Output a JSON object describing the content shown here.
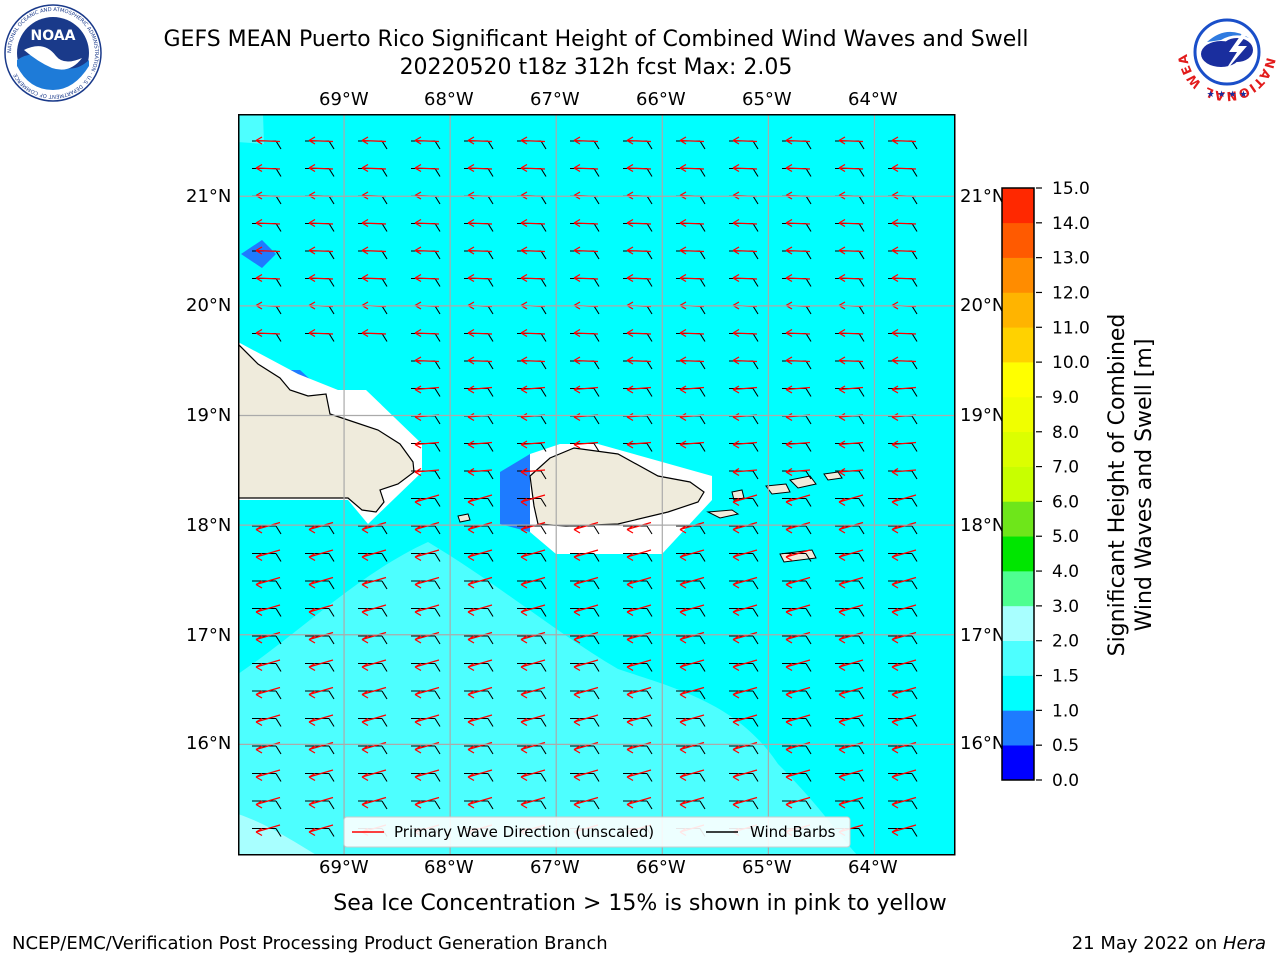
{
  "header": {
    "title_line1": "GEFS MEAN Puerto Rico Significant Height of Combined Wind Waves and Swell",
    "title_line2": "20220520 t18z 312h fcst   Max: 2.05",
    "noaa_logo_text": "NOAA",
    "noaa_logo_ring_text": "NATIONAL OCEANIC AND ATMOSPHERIC ADMINISTRATION · U.S. DEPARTMENT OF COMMERCE",
    "nws_logo_ring_text": "NATIONAL WEATHER SERVICE"
  },
  "map": {
    "lon_labels": [
      "69°W",
      "68°W",
      "67°W",
      "66°W",
      "65°W",
      "64°W"
    ],
    "lat_labels": [
      "21°N",
      "20°N",
      "19°N",
      "18°N",
      "17°N",
      "16°N"
    ],
    "extent": {
      "lon_min": -70.0,
      "lon_max": -63.25,
      "lat_min": 15.0,
      "lat_max": 21.75
    },
    "ocean_color": "#00ffff",
    "land_color": "#efebdc",
    "arrow_color": "#ff0000",
    "barb_color": "#000000",
    "legend": {
      "primary_wave": "Primary Wave Direction (unscaled)",
      "wind_barbs": "Wind Barbs"
    }
  },
  "colorbar": {
    "label": "Significant Height of Combined Wind Waves and Swell [m]",
    "label_line1": "Significant Height of Combined",
    "label_line2": "Wind Waves and Swell [m]",
    "ticks": [
      "15.0",
      "14.0",
      "13.0",
      "12.0",
      "11.0",
      "10.0",
      "9.0",
      "8.0",
      "7.0",
      "6.0",
      "5.0",
      "4.0",
      "3.0",
      "2.0",
      "1.5",
      "1.0",
      "0.5",
      "0.0"
    ],
    "bins_bottom_to_top": [
      {
        "from": 0.0,
        "to": 0.5,
        "color": "#0000ff"
      },
      {
        "from": 0.5,
        "to": 1.0,
        "color": "#1e7bff"
      },
      {
        "from": 1.0,
        "to": 1.5,
        "color": "#00ffff"
      },
      {
        "from": 1.5,
        "to": 2.0,
        "color": "#4dffff"
      },
      {
        "from": 2.0,
        "to": 3.0,
        "color": "#a8ffff"
      },
      {
        "from": 3.0,
        "to": 4.0,
        "color": "#4eff91"
      },
      {
        "from": 4.0,
        "to": 5.0,
        "color": "#00e600"
      },
      {
        "from": 5.0,
        "to": 6.0,
        "color": "#6ee61a"
      },
      {
        "from": 6.0,
        "to": 7.0,
        "color": "#c8ff00"
      },
      {
        "from": 7.0,
        "to": 8.0,
        "color": "#dcff00"
      },
      {
        "from": 8.0,
        "to": 9.0,
        "color": "#f0ff00"
      },
      {
        "from": 9.0,
        "to": 10.0,
        "color": "#ffff00"
      },
      {
        "from": 10.0,
        "to": 11.0,
        "color": "#ffd200"
      },
      {
        "from": 11.0,
        "to": 12.0,
        "color": "#ffb400"
      },
      {
        "from": 12.0,
        "to": 13.0,
        "color": "#ff8c00"
      },
      {
        "from": 13.0,
        "to": 14.0,
        "color": "#ff5a00"
      },
      {
        "from": 14.0,
        "to": 15.0,
        "color": "#ff2800"
      },
      {
        "from": 15.0,
        "to": 15.0,
        "color": "#ff0000"
      }
    ]
  },
  "note": "Sea Ice Concentration > 15% is shown in pink to yellow",
  "footer": {
    "left": "NCEP/EMC/Verification Post Processing Product Generation Branch",
    "right_prefix": "21 May 2022 on ",
    "right_host": "Hera"
  }
}
